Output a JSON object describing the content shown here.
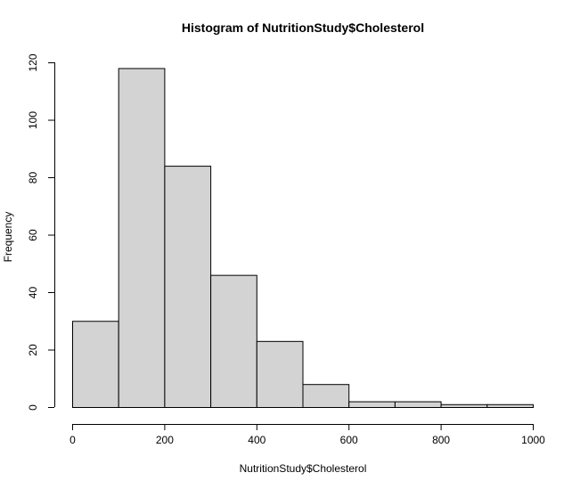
{
  "chart_data": {
    "type": "bar",
    "title": "Histogram of NutritionStudy$Cholesterol",
    "xlabel": "NutritionStudy$Cholesterol",
    "ylabel": "Frequency",
    "bins": [
      {
        "start": 0,
        "end": 100,
        "count": 30
      },
      {
        "start": 100,
        "end": 200,
        "count": 118
      },
      {
        "start": 200,
        "end": 300,
        "count": 84
      },
      {
        "start": 300,
        "end": 400,
        "count": 46
      },
      {
        "start": 400,
        "end": 500,
        "count": 23
      },
      {
        "start": 500,
        "end": 600,
        "count": 8
      },
      {
        "start": 600,
        "end": 700,
        "count": 2
      },
      {
        "start": 700,
        "end": 800,
        "count": 2
      },
      {
        "start": 800,
        "end": 900,
        "count": 1
      },
      {
        "start": 900,
        "end": 1000,
        "count": 1
      }
    ],
    "xlim": [
      0,
      1000
    ],
    "ylim": [
      0,
      120
    ],
    "xticks": [
      0,
      200,
      400,
      600,
      800,
      1000
    ],
    "yticks": [
      0,
      20,
      40,
      60,
      80,
      100,
      120
    ],
    "bar_color": "#d3d3d3",
    "edge_color": "#000000",
    "grid": false
  }
}
